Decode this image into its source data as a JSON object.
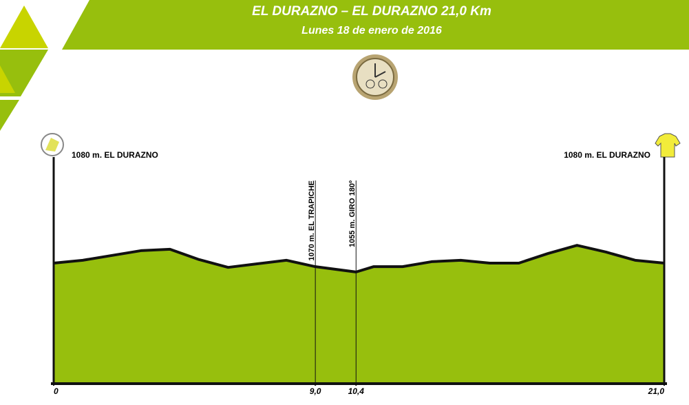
{
  "chart_data": {
    "type": "area",
    "title": "EL DURAZNO – EL DURAZNO 21,0 Km",
    "subtitle": "Lunes 18 de enero de 2016",
    "x": [
      0,
      1,
      3,
      4,
      5,
      6,
      7,
      8,
      9,
      10.4,
      11,
      12,
      13,
      14,
      15,
      16,
      17,
      18,
      19,
      20,
      21
    ],
    "values": [
      1080,
      1088,
      1115,
      1119,
      1090,
      1068,
      1078,
      1088,
      1070,
      1055,
      1070,
      1070,
      1084,
      1088,
      1080,
      1080,
      1107,
      1130,
      1111,
      1088,
      1080
    ],
    "color": "#97bf0d",
    "xlim": [
      0,
      21
    ],
    "ylim": [
      745,
      1140
    ],
    "xticks": [
      0,
      {
        "value": 9,
        "label": "9,0"
      },
      {
        "value": 10.4,
        "label": "10,4"
      },
      {
        "value": 21,
        "label": "21,0"
      }
    ],
    "annotations": [
      {
        "label": "1080 m. EL DURAZNO",
        "x": 0,
        "side": "start"
      },
      {
        "label": "1070 m. EL TRAPICHE",
        "x": 9,
        "side": "vertical"
      },
      {
        "label": "1055 m. GIRO 180º",
        "x": 10.4,
        "side": "vertical"
      },
      {
        "label": "1080 m. EL DURAZNO",
        "x": 21,
        "side": "finish"
      }
    ]
  }
}
